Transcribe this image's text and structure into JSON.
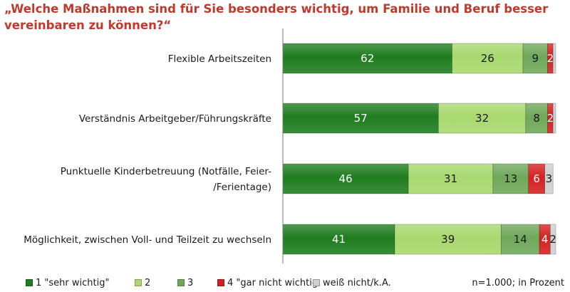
{
  "chart_data": {
    "type": "bar",
    "orientation": "horizontal",
    "stacked": true,
    "title": "„Welche Maßnahmen sind für Sie besonders wichtig, um Familie und Beruf besser vereinbaren zu können?“",
    "categories": [
      [
        "Flexible Arbeitszeiten"
      ],
      [
        "Verständnis Arbeitgeber/Führungskräfte"
      ],
      [
        "Punktuelle Kinderbetreuung (Notfälle, Feier-",
        "/Ferientage)"
      ],
      [
        "Möglichkeit, zwischen Voll- und Teilzeit zu wechseln"
      ]
    ],
    "series": [
      {
        "name": "1 \"sehr wichtig\"",
        "color": "#1e7d1e",
        "label_color": "#ffffff",
        "values": [
          62,
          57,
          46,
          41
        ]
      },
      {
        "name": "2",
        "color": "#a8d86e",
        "label_color": "#1a1a1a",
        "values": [
          26,
          32,
          31,
          39
        ]
      },
      {
        "name": "3",
        "color": "#6fa85a",
        "label_color": "#1a1a1a",
        "values": [
          9,
          8,
          13,
          14
        ]
      },
      {
        "name": "4 \"gar nicht wichtig",
        "color": "#d42020",
        "label_color": "#ffffff",
        "values": [
          2,
          2,
          6,
          4
        ]
      },
      {
        "name": "weiß nicht/k.A.",
        "color": "#cfcfcf",
        "label_color": "#1a1a1a",
        "values": [
          1,
          1,
          3,
          2
        ]
      }
    ],
    "data_labels": [
      [
        "62",
        "26",
        "9",
        "2",
        ""
      ],
      [
        "57",
        "32",
        "8",
        "2",
        ""
      ],
      [
        "46",
        "31",
        "13",
        "6",
        "3"
      ],
      [
        "41",
        "39",
        "14",
        "4",
        "2"
      ]
    ],
    "grid": false,
    "legend_position": "bottom"
  },
  "note": "n=1.000; in Prozent"
}
